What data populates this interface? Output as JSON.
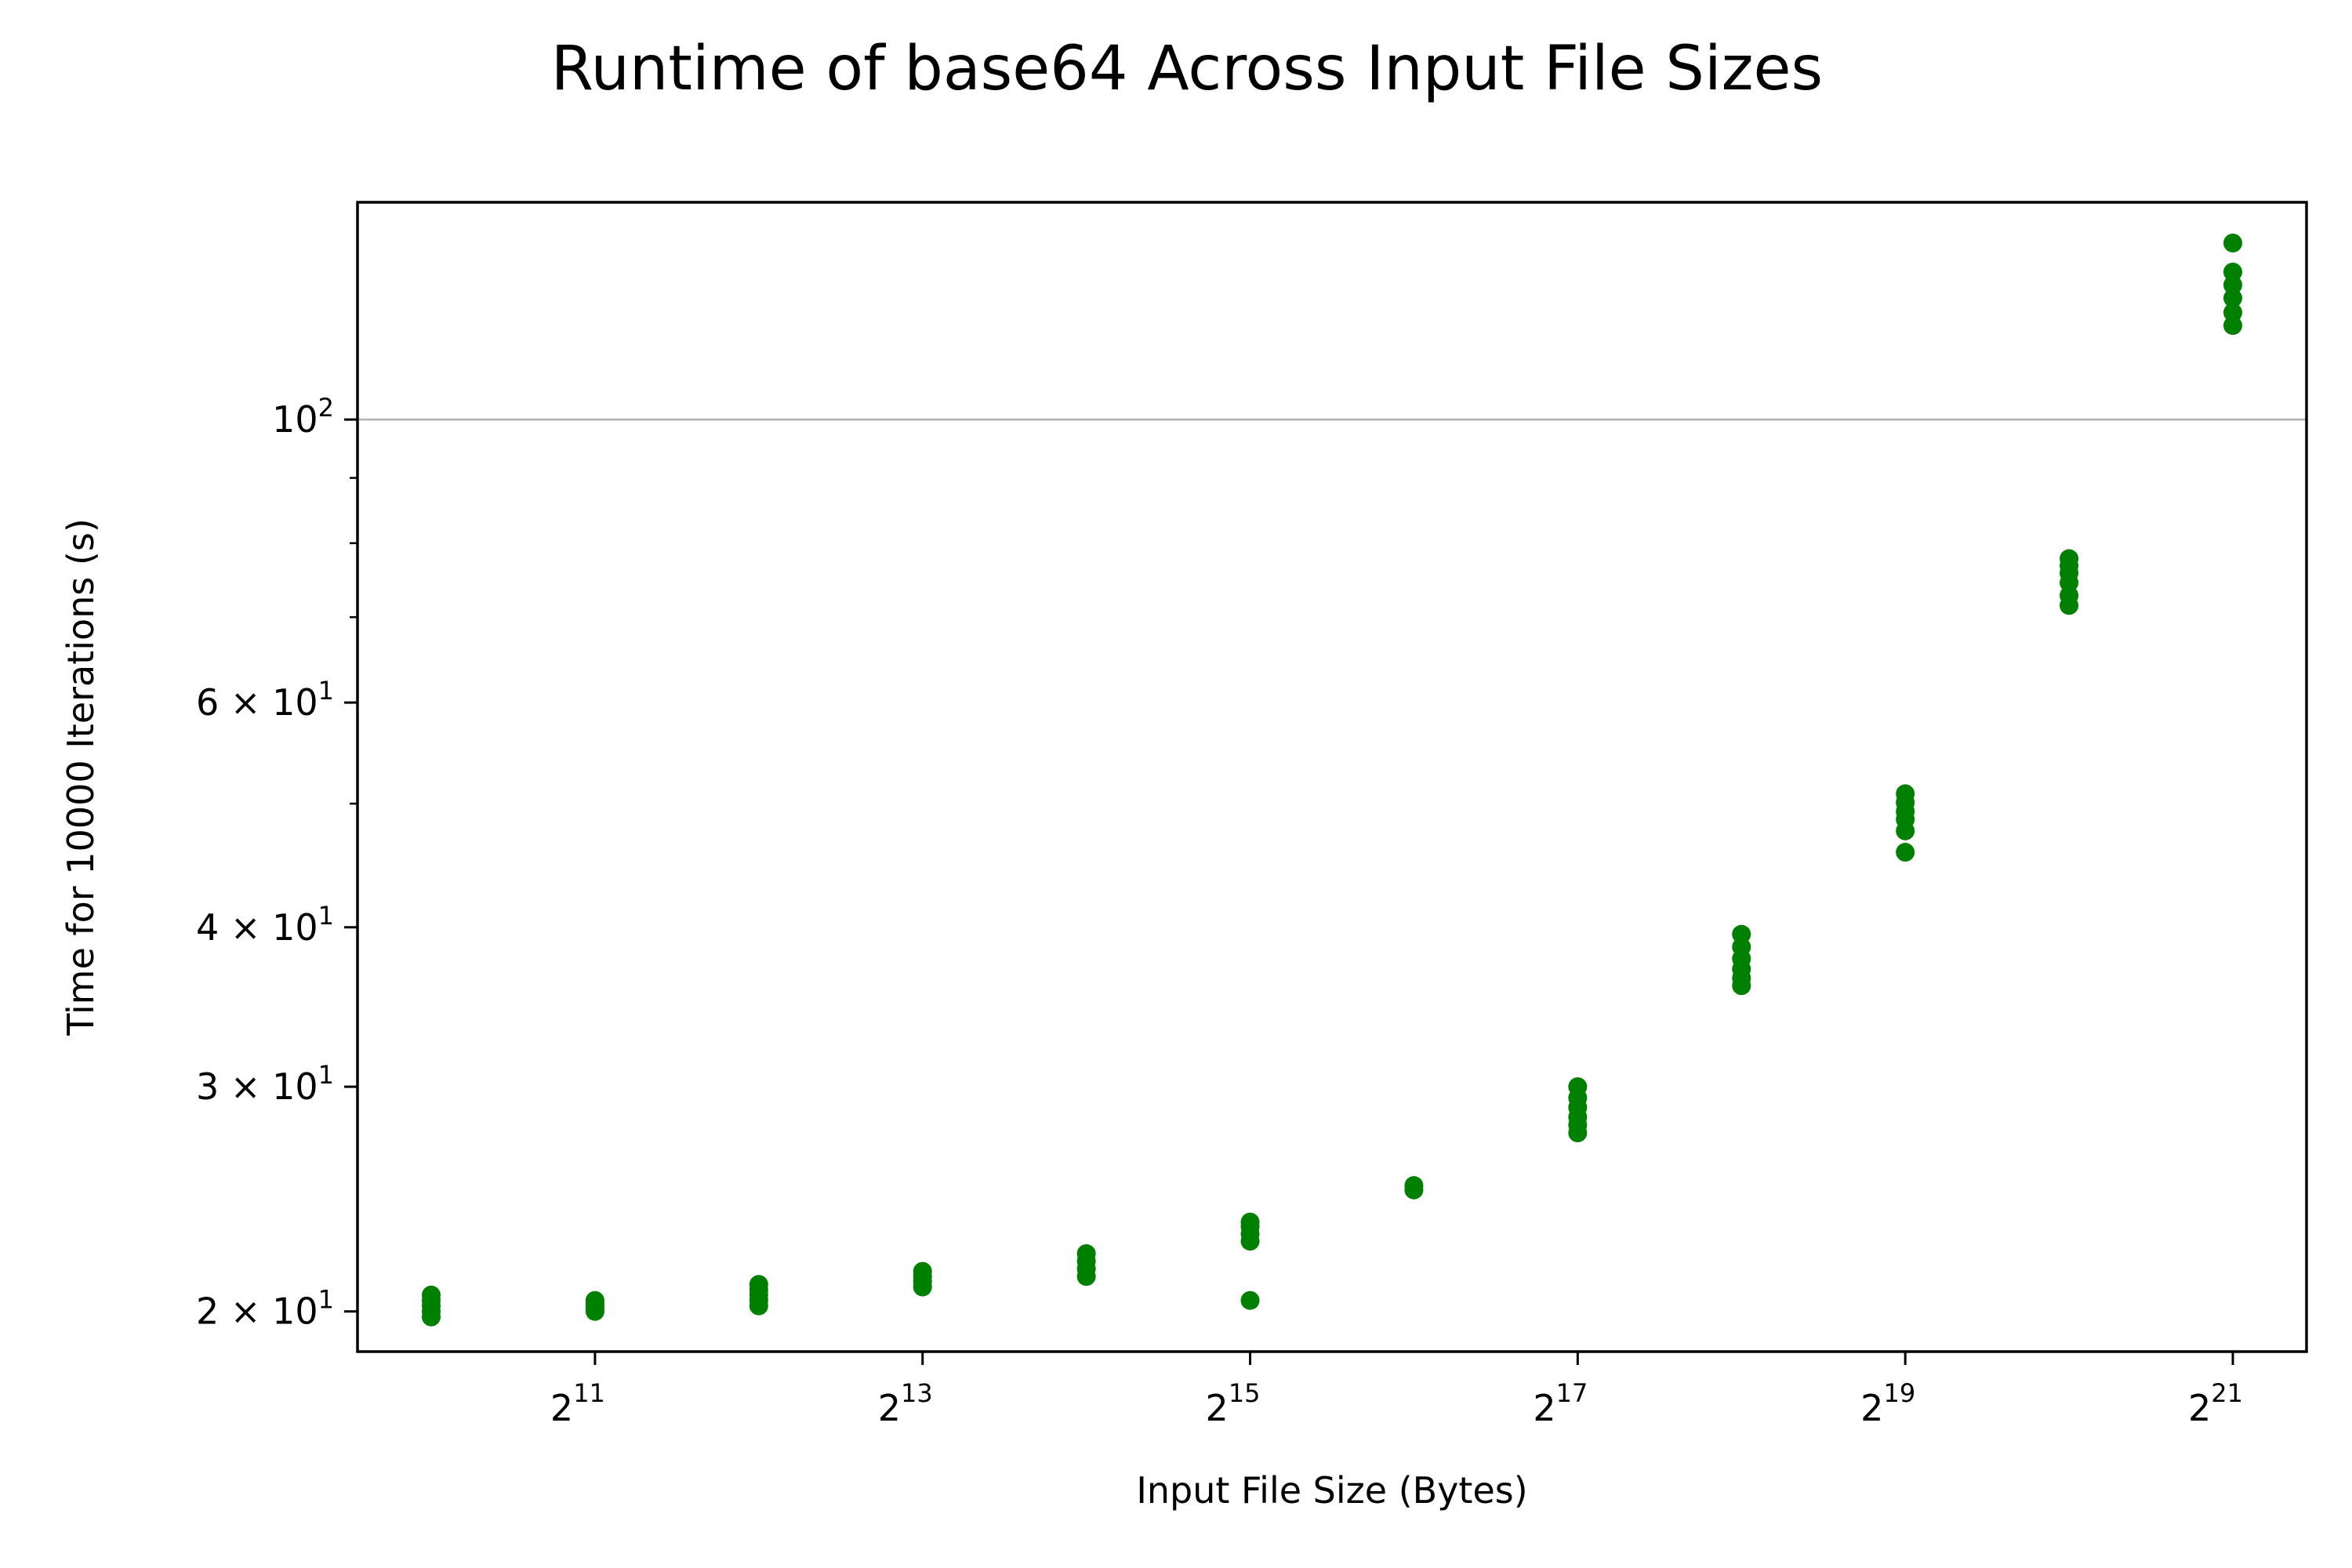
{
  "chart_data": {
    "type": "scatter",
    "title": "Runtime of base64 Across Input File Sizes",
    "xlabel": "Input File Size (Bytes)",
    "ylabel": "Time for 10000 Iterations (s)",
    "xscale": "log2",
    "yscale": "log10",
    "xlim_exponent": [
      9.55,
      21.45
    ],
    "ylim": [
      18.6,
      148
    ],
    "grid": "y-major",
    "marker_color": "#008000",
    "x_ticks": [
      {
        "base": "2",
        "exponent": "11",
        "value_exponent": 11
      },
      {
        "base": "2",
        "exponent": "13",
        "value_exponent": 13
      },
      {
        "base": "2",
        "exponent": "15",
        "value_exponent": 15
      },
      {
        "base": "2",
        "exponent": "17",
        "value_exponent": 17
      },
      {
        "base": "2",
        "exponent": "19",
        "value_exponent": 19
      },
      {
        "base": "2",
        "exponent": "21",
        "value_exponent": 21
      }
    ],
    "y_ticks": [
      {
        "mantissa": "2 × ",
        "base": "10",
        "exponent": "1",
        "value": 20
      },
      {
        "mantissa": "3 × ",
        "base": "10",
        "exponent": "1",
        "value": 30
      },
      {
        "mantissa": "4 × ",
        "base": "10",
        "exponent": "1",
        "value": 40
      },
      {
        "mantissa": "6 × ",
        "base": "10",
        "exponent": "1",
        "value": 60
      },
      {
        "mantissa": "",
        "base": "10",
        "exponent": "2",
        "value": 100
      }
    ],
    "y_minor_ticks": [
      50,
      70,
      80,
      90
    ],
    "series": [
      {
        "name": "base64",
        "points": [
          {
            "x_exp": 10,
            "ys": [
              19.8,
              20.0,
              20.2,
              20.4,
              20.6
            ]
          },
          {
            "x_exp": 11,
            "ys": [
              20.0,
              20.1,
              20.2,
              20.3,
              20.4
            ]
          },
          {
            "x_exp": 12,
            "ys": [
              20.2,
              20.4,
              20.6,
              20.8,
              21.0
            ]
          },
          {
            "x_exp": 13,
            "ys": [
              20.9,
              21.1,
              21.3,
              21.5
            ]
          },
          {
            "x_exp": 14,
            "ys": [
              21.3,
              21.6,
              21.9,
              22.2
            ]
          },
          {
            "x_exp": 15,
            "ys": [
              20.4,
              22.7,
              23.0,
              23.3,
              23.5
            ]
          },
          {
            "x_exp": 16,
            "ys": [
              24.9,
              25.1
            ]
          },
          {
            "x_exp": 17,
            "ys": [
              27.6,
              28.0,
              28.4,
              28.9,
              29.4,
              30.0
            ]
          },
          {
            "x_exp": 18,
            "ys": [
              36.0,
              36.5,
              37.1,
              37.8,
              38.6,
              39.5
            ]
          },
          {
            "x_exp": 19,
            "ys": [
              45.8,
              47.6,
              48.6,
              49.3,
              50.1,
              50.9
            ]
          },
          {
            "x_exp": 20,
            "ys": [
              71.5,
              72.8,
              74.5,
              75.8,
              76.8,
              77.8
            ]
          },
          {
            "x_exp": 21,
            "ys": [
              118.5,
              121.3,
              124.5,
              127.5,
              130.5,
              137.5
            ]
          }
        ]
      }
    ]
  }
}
